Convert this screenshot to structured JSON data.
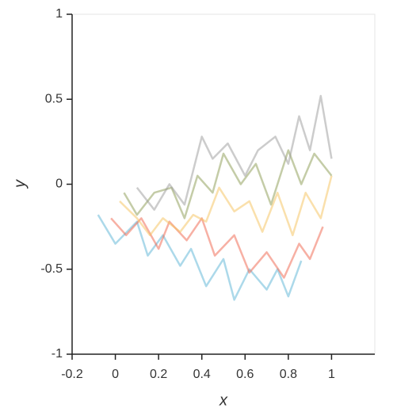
{
  "chart_data": {
    "type": "line",
    "xlabel": "x",
    "ylabel": "y",
    "xlim": [
      -0.2,
      1.2
    ],
    "ylim": [
      -1,
      1
    ],
    "xticks": [
      -0.2,
      0,
      0.2,
      0.4,
      0.6,
      0.8,
      1
    ],
    "yticks": [
      -1,
      -0.5,
      0,
      0.5,
      1
    ],
    "series": [
      {
        "color": "#5ab4d6",
        "x": [
          -0.08,
          0.0,
          0.1,
          0.15,
          0.22,
          0.3,
          0.35,
          0.42,
          0.5,
          0.55,
          0.62,
          0.7,
          0.75,
          0.8,
          0.86
        ],
        "values": [
          -0.18,
          -0.35,
          -0.22,
          -0.42,
          -0.3,
          -0.48,
          -0.38,
          -0.6,
          -0.44,
          -0.68,
          -0.5,
          -0.62,
          -0.5,
          -0.66,
          -0.45
        ]
      },
      {
        "color": "#f0614a",
        "x": [
          -0.02,
          0.05,
          0.12,
          0.2,
          0.25,
          0.33,
          0.4,
          0.46,
          0.55,
          0.62,
          0.7,
          0.78,
          0.85,
          0.9,
          0.96
        ],
        "values": [
          -0.2,
          -0.3,
          -0.2,
          -0.38,
          -0.22,
          -0.33,
          -0.2,
          -0.42,
          -0.3,
          -0.52,
          -0.4,
          -0.55,
          -0.35,
          -0.44,
          -0.25
        ]
      },
      {
        "color": "#f5c15a",
        "x": [
          0.02,
          0.1,
          0.16,
          0.22,
          0.3,
          0.36,
          0.42,
          0.48,
          0.55,
          0.62,
          0.68,
          0.75,
          0.82,
          0.88,
          0.95,
          1.0
        ],
        "values": [
          -0.1,
          -0.2,
          -0.3,
          -0.2,
          -0.28,
          -0.18,
          -0.22,
          -0.02,
          -0.16,
          -0.1,
          -0.28,
          -0.05,
          -0.3,
          -0.05,
          -0.2,
          0.05
        ]
      },
      {
        "color": "#8a9a50",
        "x": [
          0.04,
          0.1,
          0.18,
          0.26,
          0.32,
          0.38,
          0.45,
          0.5,
          0.58,
          0.65,
          0.72,
          0.8,
          0.86,
          0.92,
          1.0
        ],
        "values": [
          -0.05,
          -0.18,
          -0.05,
          -0.02,
          -0.2,
          0.05,
          -0.05,
          0.18,
          0.0,
          0.12,
          -0.12,
          0.2,
          0.0,
          0.18,
          0.05
        ]
      },
      {
        "color": "#999999",
        "x": [
          0.1,
          0.18,
          0.25,
          0.32,
          0.4,
          0.45,
          0.52,
          0.6,
          0.66,
          0.74,
          0.8,
          0.85,
          0.9,
          0.95,
          1.0
        ],
        "values": [
          -0.02,
          -0.15,
          0.0,
          -0.12,
          0.28,
          0.15,
          0.24,
          0.05,
          0.2,
          0.28,
          0.12,
          0.4,
          0.2,
          0.52,
          0.15
        ]
      }
    ]
  }
}
